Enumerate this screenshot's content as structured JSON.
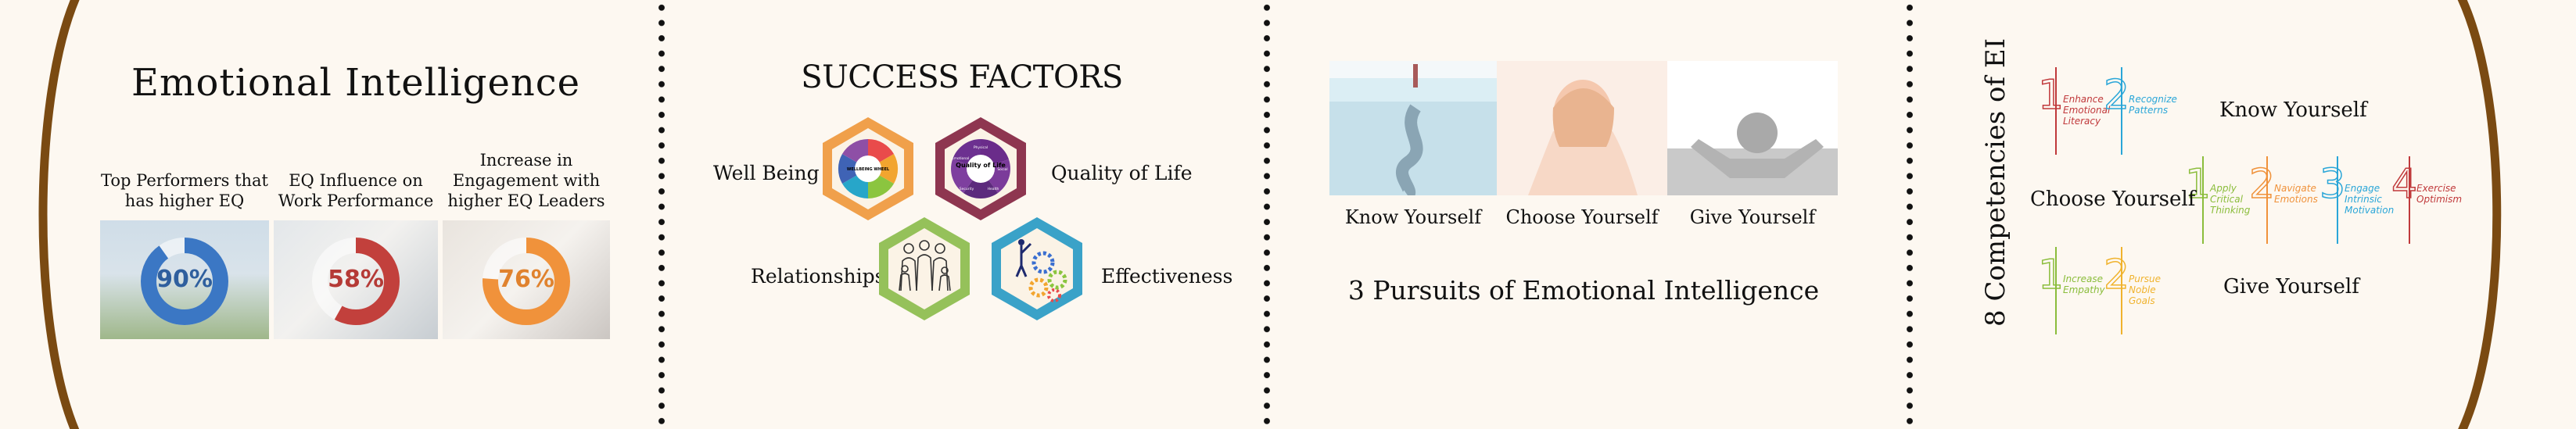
{
  "section1": {
    "title": "Emotional Intelligence",
    "stats": [
      {
        "caption": "Top Performers that has higher EQ",
        "value": "90%",
        "fraction": 0.9,
        "color": "#3b77c4"
      },
      {
        "caption": "EQ Influence on Work Performance",
        "value": "58%",
        "fraction": 0.58,
        "color": "#c2403c"
      },
      {
        "caption": "Increase in Engagement with higher EQ Leaders",
        "value": "76%",
        "fraction": 0.76,
        "color": "#f0923b"
      }
    ]
  },
  "section2": {
    "title": "SUCCESS FACTORS",
    "labels": {
      "well_being": "Well Being",
      "quality_of_life": "Quality of Life",
      "relationships": "Relationships",
      "effectiveness": "Effectiveness"
    },
    "hex_texts": {
      "wellbeing_center": "WELLBEING WHEEL",
      "quality_center": "Quality of Life",
      "qol_segments": [
        "Physical",
        "Social",
        "Security",
        "Health",
        "Emotional"
      ]
    },
    "colors": {
      "orange": "#f0a04b",
      "maroon": "#8e3650",
      "green": "#95c15a",
      "blue": "#3aa2c8"
    }
  },
  "section3": {
    "panel_labels": [
      "Know Yourself",
      "Choose Yourself",
      "Give Yourself"
    ],
    "title": "3 Pursuits of Emotional Intelligence"
  },
  "section4": {
    "vertical_title": "8 Competencies of EI",
    "groups": [
      {
        "label": "Know Yourself",
        "items": [
          {
            "num": "1",
            "text": "Enhance Emotional Literacy",
            "color": "#c0393b"
          },
          {
            "num": "2",
            "text": "Recognize Patterns",
            "color": "#2aa6d8"
          }
        ]
      },
      {
        "label": "Choose Yourself",
        "items": [
          {
            "num": "1",
            "text": "Apply Critical Thinking",
            "color": "#8bbd3c"
          },
          {
            "num": "2",
            "text": "Navigate Emotions",
            "color": "#f0923b"
          },
          {
            "num": "3",
            "text": "Engage Intrinsic Motivation",
            "color": "#2aa6d8"
          },
          {
            "num": "4",
            "text": "Exercise Optimism",
            "color": "#c0393b"
          }
        ]
      },
      {
        "label": "Give Yourself",
        "items": [
          {
            "num": "1",
            "text": "Increase Empathy",
            "color": "#8bbd3c"
          },
          {
            "num": "2",
            "text": "Pursue Noble Goals",
            "color": "#f0b32e"
          }
        ]
      }
    ]
  },
  "colors": {
    "background": "#fdf8f1",
    "bracket": "#7a4a12"
  }
}
